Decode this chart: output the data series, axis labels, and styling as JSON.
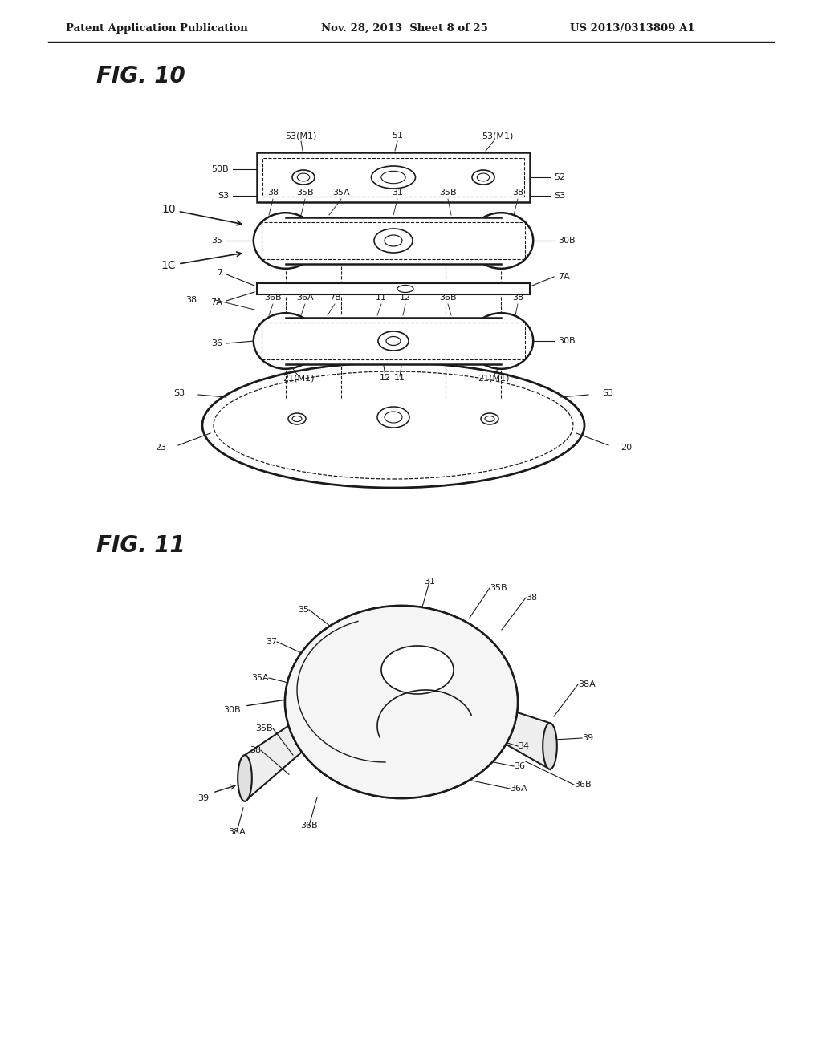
{
  "header_left": "Patent Application Publication",
  "header_mid": "Nov. 28, 2013  Sheet 8 of 25",
  "header_right": "US 2013/0313809 A1",
  "fig10_title": "FIG. 10",
  "fig11_title": "FIG. 11",
  "bg_color": "#ffffff",
  "line_color": "#1a1a1a",
  "text_color": "#1a1a1a"
}
